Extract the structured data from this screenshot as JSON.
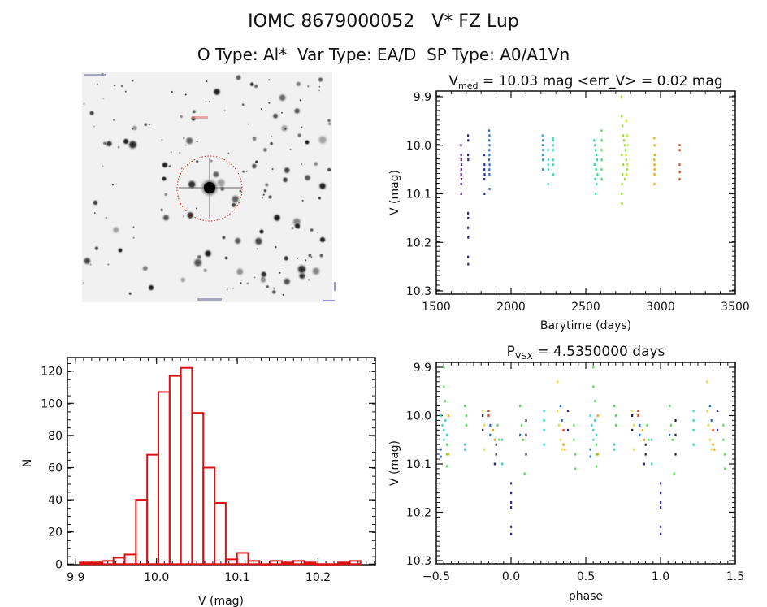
{
  "header": {
    "title": "IOMC 8679000052   V* FZ Lup",
    "subtitle": "O Type: Al*  Var Type: EA/D  SP Type: A0/A1Vn"
  },
  "chart_data": [
    {
      "type": "scatter",
      "title_main": "V",
      "title_sub": "med",
      "title_rest": " = 10.03 mag <err_V> = 0.02 mag",
      "xlabel": "Barytime (days)",
      "ylabel": "V (mag)",
      "xlim": [
        1500,
        3500
      ],
      "ylim": [
        10.3,
        9.9
      ],
      "y_inverted": true,
      "xticks": [
        "1500",
        "2000",
        "2500",
        "3000",
        "3500"
      ],
      "yticks": [
        "9.9",
        "10.0",
        "10.1",
        "10.2",
        "10.3"
      ],
      "series": [
        {
          "color": "#5b1f8c",
          "points": [
            [
              1665,
              10.0
            ],
            [
              1666,
              10.02
            ],
            [
              1667,
              10.03
            ],
            [
              1668,
              10.04
            ],
            [
              1667,
              10.05
            ],
            [
              1666,
              10.06
            ],
            [
              1668,
              10.07
            ],
            [
              1667,
              10.08
            ],
            [
              1666,
              10.1
            ]
          ]
        },
        {
          "color": "#3b1fa0",
          "points": [
            [
              1712,
              9.98
            ],
            [
              1713,
              9.99
            ],
            [
              1712,
              10.02
            ],
            [
              1713,
              10.03
            ],
            [
              1712,
              10.14
            ],
            [
              1713,
              10.15
            ],
            [
              1712,
              10.17
            ],
            [
              1713,
              10.19
            ],
            [
              1712,
              10.23
            ],
            [
              1713,
              10.245
            ]
          ]
        },
        {
          "color": "#1f2fb0",
          "points": [
            [
              1820,
              10.02
            ],
            [
              1822,
              10.04
            ],
            [
              1821,
              10.05
            ],
            [
              1823,
              10.06
            ],
            [
              1821,
              10.07
            ],
            [
              1822,
              10.1
            ]
          ]
        },
        {
          "color": "#1f70d8",
          "points": [
            [
              1853,
              9.97
            ],
            [
              1855,
              9.98
            ],
            [
              1854,
              9.99
            ],
            [
              1856,
              10.0
            ],
            [
              1854,
              10.01
            ],
            [
              1855,
              10.02
            ],
            [
              1853,
              10.03
            ],
            [
              1856,
              10.04
            ],
            [
              1854,
              10.05
            ],
            [
              1855,
              10.06
            ],
            [
              1856,
              10.09
            ]
          ]
        },
        {
          "color": "#30a0e0",
          "points": [
            [
              2210,
              9.98
            ],
            [
              2212,
              9.99
            ],
            [
              2211,
              10.0
            ],
            [
              2213,
              10.01
            ],
            [
              2211,
              10.02
            ],
            [
              2212,
              10.03
            ],
            [
              2211,
              10.05
            ]
          ]
        },
        {
          "color": "#30d0e0",
          "points": [
            [
              2247,
              10.01
            ],
            [
              2249,
              10.03
            ],
            [
              2248,
              10.04
            ],
            [
              2250,
              10.05
            ],
            [
              2248,
              10.08
            ]
          ]
        },
        {
          "color": "#30e0c8",
          "points": [
            [
              2280,
              9.985
            ],
            [
              2282,
              9.99
            ],
            [
              2281,
              10.0
            ],
            [
              2283,
              10.01
            ],
            [
              2281,
              10.03
            ],
            [
              2282,
              10.04
            ],
            [
              2283,
              10.06
            ]
          ]
        },
        {
          "color": "#20e090",
          "points": [
            [
              2556,
              9.99
            ],
            [
              2560,
              10.0
            ],
            [
              2565,
              10.01
            ],
            [
              2570,
              10.02
            ],
            [
              2575,
              10.03
            ],
            [
              2558,
              10.04
            ],
            [
              2568,
              10.05
            ],
            [
              2578,
              10.06
            ],
            [
              2562,
              10.07
            ],
            [
              2572,
              10.08
            ],
            [
              2566,
              10.1
            ]
          ]
        },
        {
          "color": "#40e050",
          "points": [
            [
              2605,
              9.97
            ],
            [
              2606,
              9.99
            ],
            [
              2605,
              10.01
            ],
            [
              2606,
              10.03
            ],
            [
              2605,
              10.05
            ],
            [
              2606,
              10.07
            ]
          ]
        },
        {
          "color": "#90e030",
          "points": [
            [
              2738,
              9.9
            ],
            [
              2740,
              9.94
            ],
            [
              2745,
              9.96
            ],
            [
              2750,
              9.98
            ],
            [
              2755,
              9.99
            ],
            [
              2760,
              10.0
            ],
            [
              2765,
              10.01
            ],
            [
              2740,
              10.02
            ],
            [
              2770,
              10.03
            ],
            [
              2750,
              10.04
            ],
            [
              2775,
              10.05
            ],
            [
              2745,
              10.06
            ],
            [
              2760,
              10.07
            ],
            [
              2742,
              10.08
            ],
            [
              2740,
              10.1
            ],
            [
              2741,
              10.12
            ]
          ]
        },
        {
          "color": "#c0f020",
          "points": [
            [
              2770,
              9.95
            ],
            [
              2775,
              9.98
            ],
            [
              2780,
              10.0
            ],
            [
              2768,
              10.02
            ],
            [
              2778,
              10.04
            ],
            [
              2772,
              10.06
            ]
          ]
        },
        {
          "color": "#f0a800",
          "points": [
            [
              2958,
              9.985
            ],
            [
              2959,
              10.0
            ],
            [
              2960,
              10.02
            ],
            [
              2958,
              10.03
            ],
            [
              2959,
              10.04
            ],
            [
              2960,
              10.05
            ],
            [
              2959,
              10.06
            ],
            [
              2958,
              10.08
            ]
          ]
        },
        {
          "color": "#e05010",
          "points": [
            [
              3127,
              10.0
            ],
            [
              3128,
              10.01
            ],
            [
              3127,
              10.04
            ],
            [
              3128,
              10.055
            ],
            [
              3127,
              10.07
            ]
          ]
        }
      ]
    },
    {
      "type": "scatter",
      "title_main": "P",
      "title_sub": "VSX",
      "title_rest": " = 4.5350000 days",
      "xlabel": "phase",
      "ylabel": "V (mag)",
      "xlim": [
        -0.5,
        1.5
      ],
      "ylim": [
        10.3,
        9.9
      ],
      "y_inverted": true,
      "phase_repeat": 1,
      "xticks": [
        "-0.5",
        "0.0",
        "0.5",
        "1.0",
        "1.5"
      ],
      "yticks": [
        "9.9",
        "10.0",
        "10.1",
        "10.2",
        "10.3"
      ],
      "series": [
        {
          "color": "#30d8c8",
          "points": [
            [
              -0.47,
              10.0
            ],
            [
              -0.46,
              10.02
            ],
            [
              -0.45,
              10.03
            ],
            [
              -0.44,
              10.01
            ],
            [
              -0.43,
              10.04
            ],
            [
              -0.45,
              10.05
            ],
            [
              -0.31,
              10.06
            ],
            [
              -0.31,
              10.07
            ],
            [
              -0.06,
              10.05
            ],
            [
              -0.06,
              10.1
            ],
            [
              0.22,
              9.99
            ],
            [
              0.22,
              10.01
            ],
            [
              0.22,
              10.03
            ],
            [
              0.22,
              10.06
            ]
          ]
        },
        {
          "color": "#50e050",
          "points": [
            [
              -0.45,
              9.9
            ],
            [
              -0.45,
              9.94
            ],
            [
              -0.44,
              9.97
            ],
            [
              -0.43,
              10.06
            ],
            [
              -0.43,
              10.08
            ],
            [
              -0.43,
              10.105
            ],
            [
              -0.31,
              9.98
            ],
            [
              -0.3,
              10.0
            ],
            [
              -0.3,
              10.02
            ],
            [
              -0.09,
              10.02
            ],
            [
              -0.08,
              10.05
            ],
            [
              0.06,
              9.98
            ],
            [
              0.07,
              10.02
            ],
            [
              0.08,
              10.05
            ],
            [
              0.09,
              10.12
            ],
            [
              0.42,
              10.02
            ],
            [
              0.42,
              10.05
            ],
            [
              0.43,
              10.08
            ],
            [
              0.43,
              10.11
            ]
          ]
        },
        {
          "color": "#e0e030",
          "points": [
            [
              -0.19,
              9.99
            ],
            [
              -0.18,
              10.02
            ],
            [
              -0.18,
              10.07
            ],
            [
              0.31,
              9.93
            ],
            [
              0.31,
              9.99
            ],
            [
              0.32,
              10.02
            ],
            [
              0.33,
              10.05
            ],
            [
              0.34,
              10.07
            ]
          ]
        },
        {
          "color": "#f0a000",
          "points": [
            [
              -0.42,
              10.0
            ],
            [
              -0.42,
              10.08
            ],
            [
              -0.12,
              10.03
            ],
            [
              -0.11,
              10.05
            ],
            [
              0.35,
              10.06
            ],
            [
              0.36,
              10.07
            ]
          ]
        },
        {
          "color": "#d84010",
          "points": [
            [
              -0.15,
              9.99
            ],
            [
              -0.15,
              10.0
            ],
            [
              0.35,
              10.03
            ]
          ]
        },
        {
          "color": "#2070d0",
          "points": [
            [
              -0.14,
              10.02
            ],
            [
              -0.14,
              10.04
            ],
            [
              0.06,
              10.04
            ],
            [
              0.33,
              9.98
            ],
            [
              0.34,
              10.01
            ],
            [
              -0.47,
              10.07
            ],
            [
              -0.47,
              10.085
            ]
          ]
        },
        {
          "color": "#202040",
          "points": [
            [
              -0.19,
              10.0
            ],
            [
              -0.19,
              10.03
            ],
            [
              -0.1,
              10.06
            ],
            [
              -0.1,
              10.08
            ],
            [
              0.1,
              10.01
            ],
            [
              0.1,
              10.04
            ],
            [
              0.1,
              10.08
            ]
          ]
        },
        {
          "color": "#4020a0",
          "points": [
            [
              -0.11,
              10.1
            ],
            [
              0.0,
              10.14
            ],
            [
              0.0,
              10.16
            ],
            [
              0.0,
              10.18
            ],
            [
              0.0,
              10.19
            ],
            [
              0.0,
              10.23
            ],
            [
              0.0,
              10.245
            ],
            [
              0.38,
              9.99
            ],
            [
              0.38,
              10.03
            ]
          ]
        }
      ]
    },
    {
      "type": "bar",
      "subtype": "histogram",
      "xlabel": "V (mag)",
      "ylabel": "N",
      "xlim": [
        9.89,
        10.27
      ],
      "ylim": [
        0,
        128
      ],
      "xticks": [
        "9.9",
        "10.0",
        "10.1",
        "10.2"
      ],
      "yticks": [
        "0",
        "20",
        "40",
        "60",
        "80",
        "100",
        "120"
      ],
      "bin_start": 9.905,
      "bin_width": 0.0139,
      "values": [
        1,
        1,
        2,
        4,
        6,
        40,
        68,
        107,
        117,
        122,
        94,
        60,
        38,
        3,
        7,
        2,
        0,
        2,
        1,
        2,
        1,
        0,
        0,
        1,
        2
      ],
      "color": "#dd1111"
    }
  ],
  "image_panel": {
    "circle_color": "#cc2222"
  }
}
